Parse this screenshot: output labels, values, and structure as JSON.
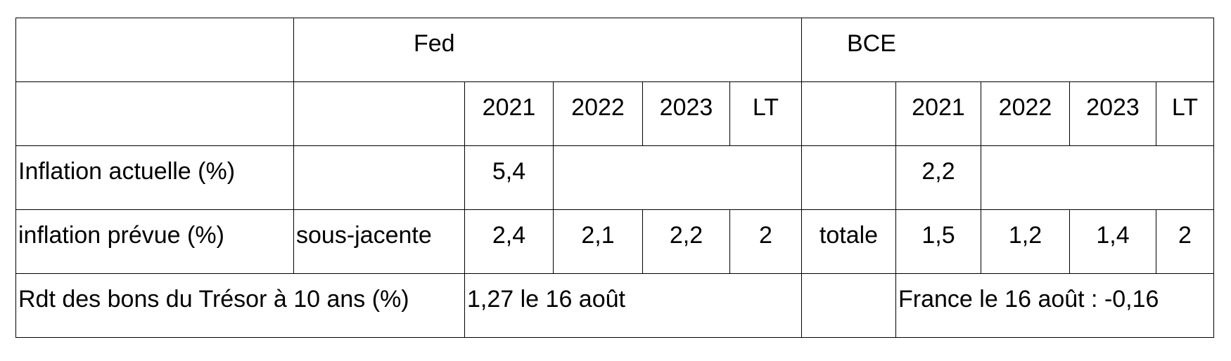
{
  "table": {
    "rows": [
      [
        "Fed",
        "BCE"
      ],
      [
        "2021",
        "2022",
        "2023",
        "LT",
        "2021",
        "2022",
        "2023",
        "LT"
      ],
      [
        "Inflation actuelle (%)",
        "5,4",
        "2,2"
      ],
      [
        "inflation prévue (%)",
        "sous-jacente",
        "2,4",
        "2,1",
        "2,2",
        "2",
        "totale",
        "1,5",
        "1,2",
        "1,4",
        "2"
      ],
      [
        "Rdt des bons du Trésor à 10 ans (%)",
        "1,27 le 16 août",
        "France le 16 août : -0,16"
      ]
    ]
  }
}
